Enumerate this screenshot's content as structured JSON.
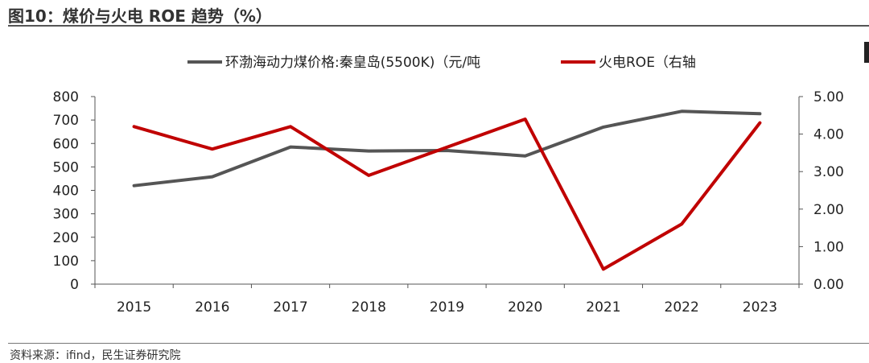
{
  "figure": {
    "title": "图10：煤价与火电 ROE 趋势（%）",
    "source": "资料来源：ifind，民生证券研究院"
  },
  "colors": {
    "coal": "#555555",
    "roe": "#c00000",
    "axis": "#555555",
    "rule": "#555555"
  },
  "chart_data": {
    "type": "line",
    "categories": [
      "2015",
      "2016",
      "2017",
      "2018",
      "2019",
      "2020",
      "2021",
      "2022",
      "2023"
    ],
    "series": [
      {
        "name": "环渤海动力煤价格:秦皇岛(5500K)（元/吨",
        "axis": "left",
        "color": "#555555",
        "values": [
          420,
          458,
          585,
          568,
          570,
          547,
          670,
          737,
          727
        ]
      },
      {
        "name": "火电ROE（右轴",
        "axis": "right",
        "color": "#c00000",
        "values": [
          4.2,
          3.6,
          4.2,
          2.9,
          3.65,
          4.4,
          0.4,
          1.6,
          4.3
        ]
      }
    ],
    "y_left": {
      "ylim": [
        0,
        800
      ],
      "ticks": [
        "0",
        "100",
        "200",
        "300",
        "400",
        "500",
        "600",
        "700",
        "800"
      ]
    },
    "y_right": {
      "ylim": [
        0,
        5
      ],
      "ticks": [
        "0.00",
        "1.00",
        "2.00",
        "3.00",
        "4.00",
        "5.00"
      ]
    },
    "grid": false,
    "legend_position": "top-center"
  }
}
